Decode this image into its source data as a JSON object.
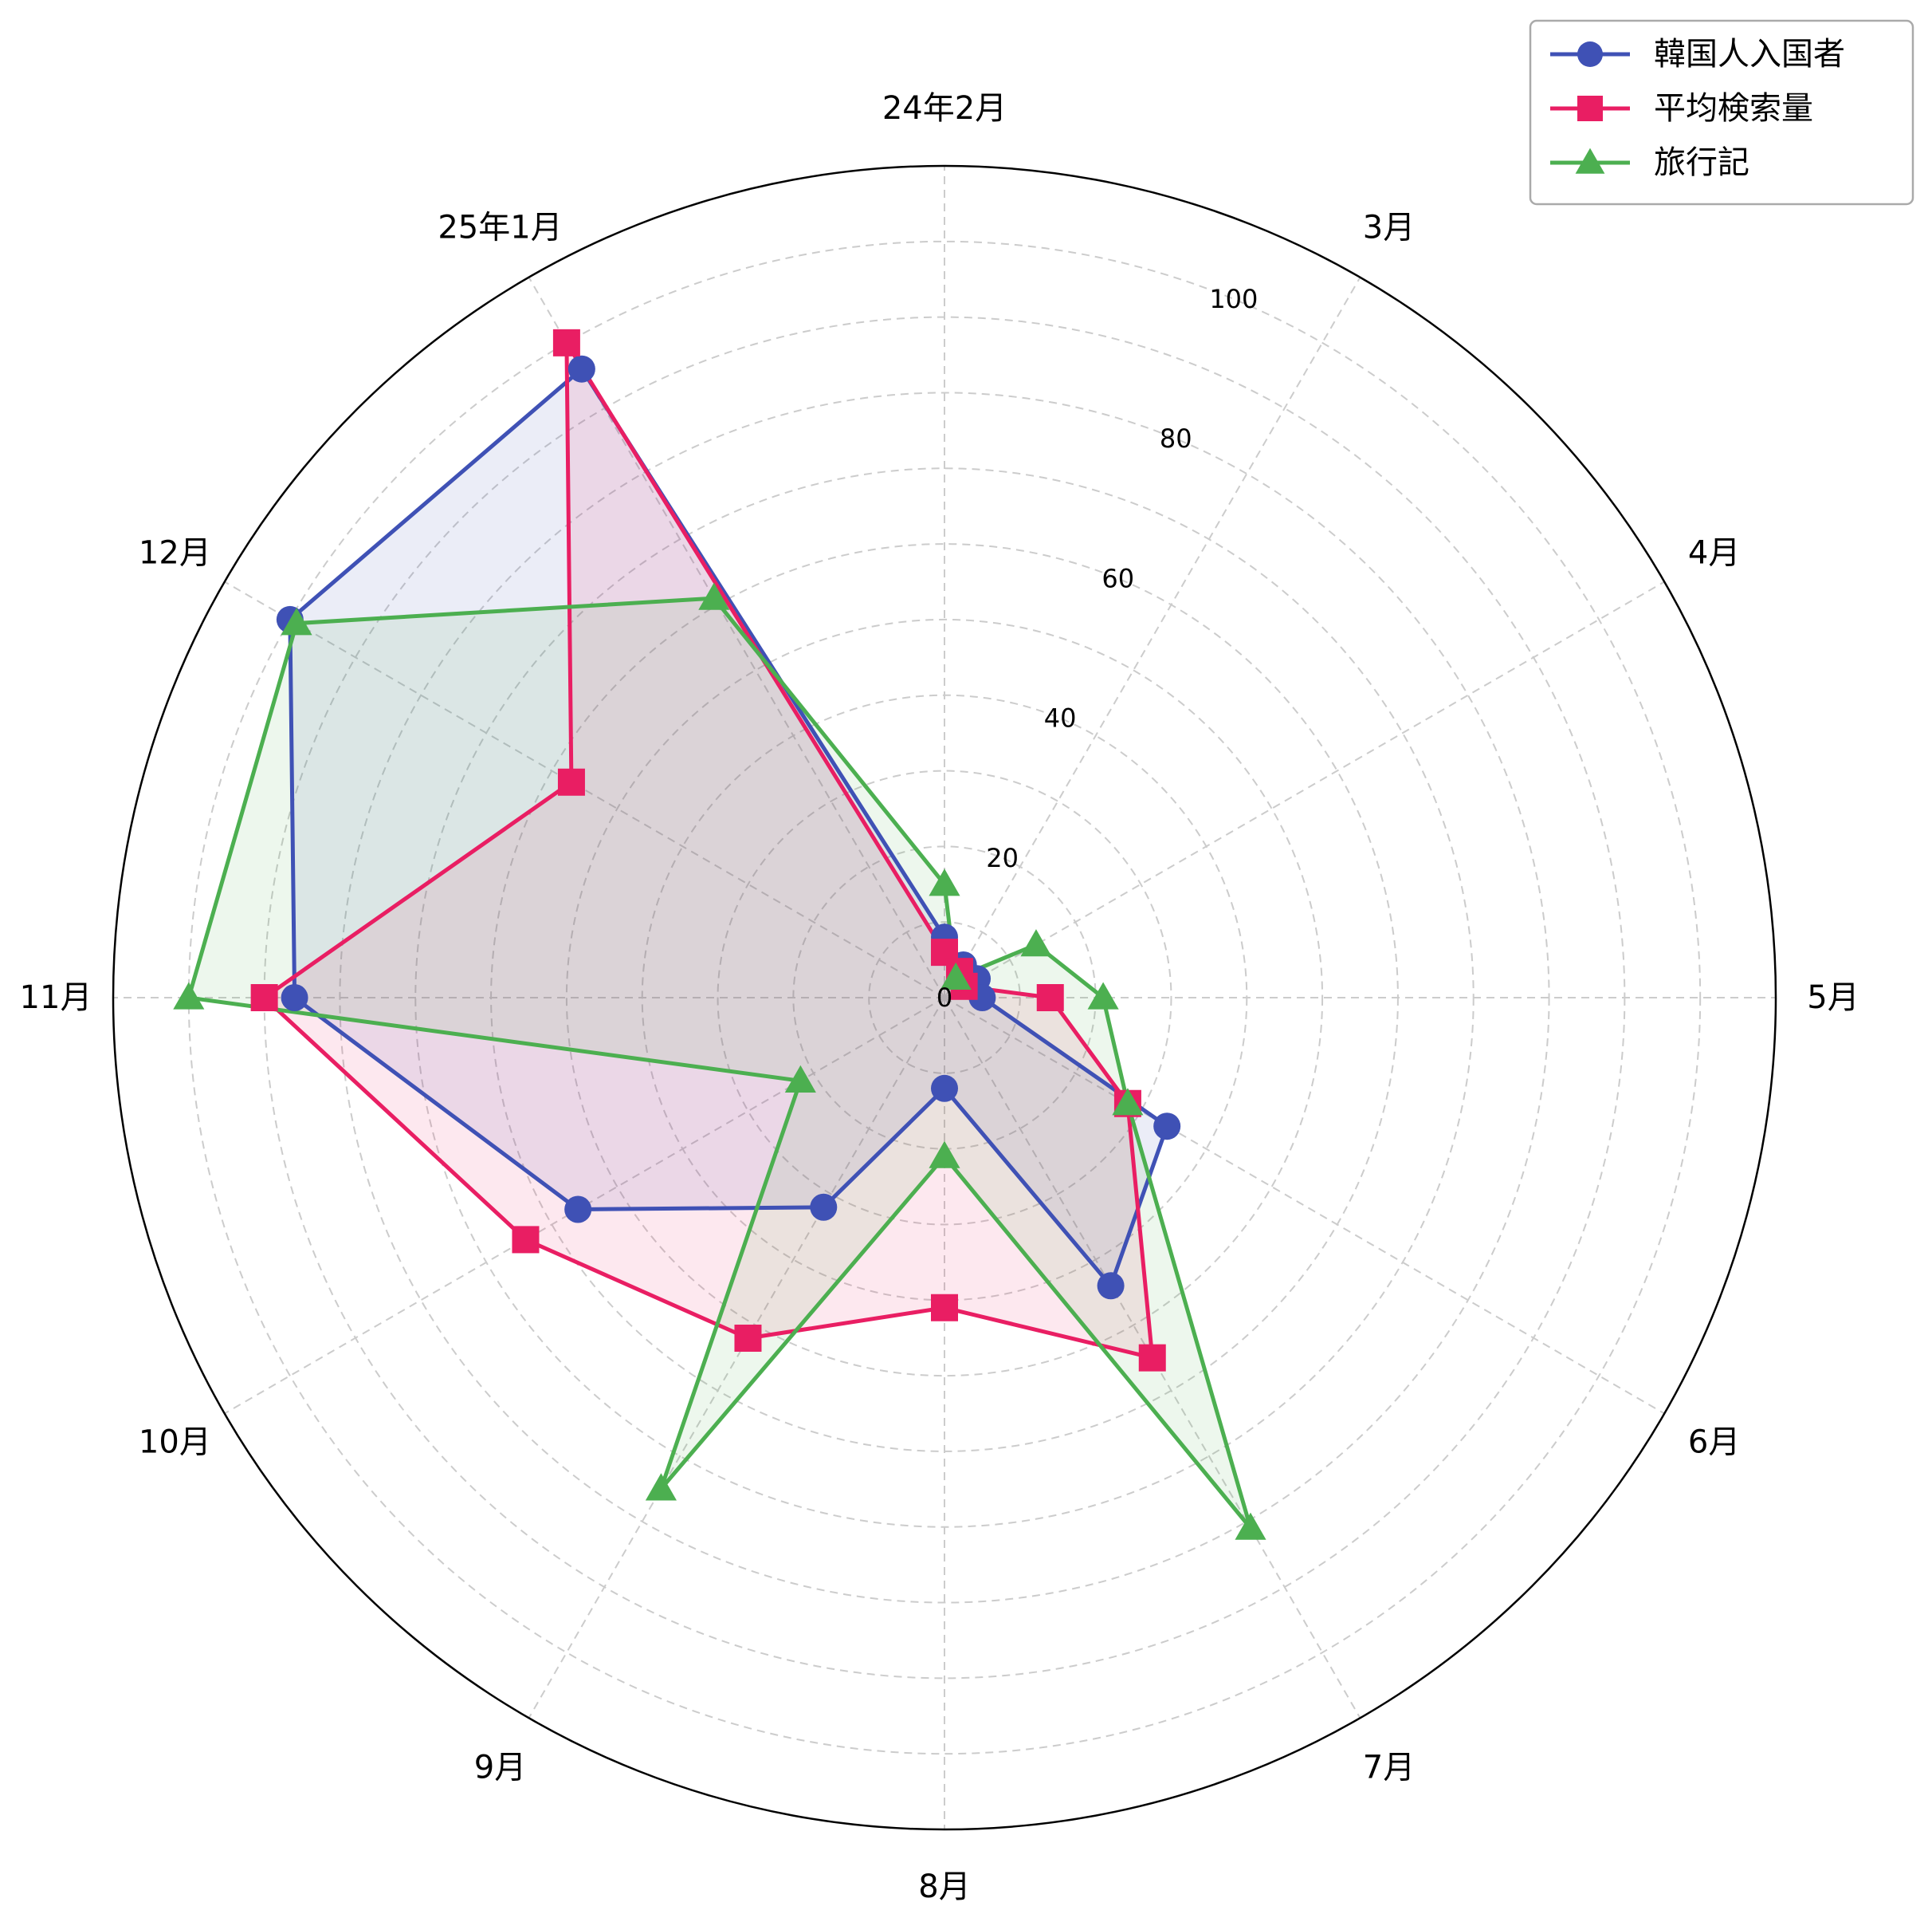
{
  "chart_data": {
    "type": "radar",
    "categories": [
      "24年2月",
      "3月",
      "4月",
      "5月",
      "6月",
      "7月",
      "8月",
      "9月",
      "10月",
      "11月",
      "12月",
      "25年1月"
    ],
    "rlim": [
      0,
      110
    ],
    "rticks": [
      0,
      20,
      40,
      60,
      80,
      100
    ],
    "grid": true,
    "legend_position": "top-right",
    "series": [
      {
        "name": "韓国人入国者",
        "color": "#3f51b5",
        "marker": "circle",
        "values": [
          8,
          5,
          5,
          5,
          34,
          44,
          12,
          32,
          56,
          86,
          100,
          96
        ]
      },
      {
        "name": "平均検索量",
        "color": "#e91e63",
        "marker": "square",
        "values": [
          6,
          4,
          3,
          14,
          28,
          55,
          41,
          52,
          64,
          90,
          57,
          100
        ]
      },
      {
        "name": "旅行記",
        "color": "#4caf50",
        "marker": "triangle",
        "values": [
          15,
          3,
          14,
          21,
          28,
          81,
          21,
          75,
          22,
          100,
          99,
          61
        ]
      }
    ]
  }
}
